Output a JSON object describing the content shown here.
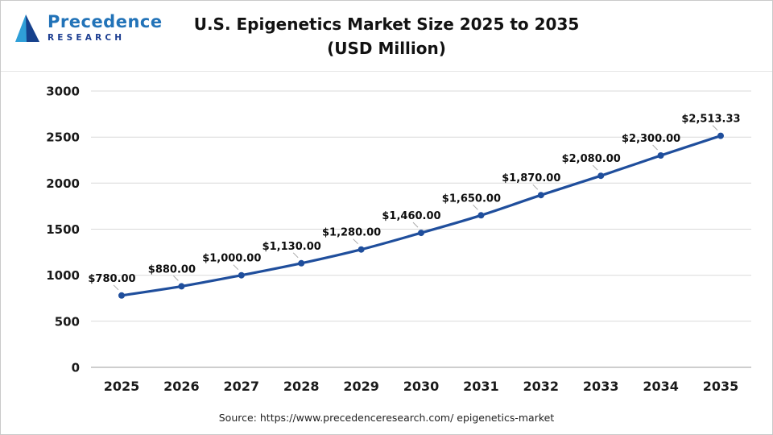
{
  "logo": {
    "line1": "Precedence",
    "line2": "RESEARCH"
  },
  "source": "Source: https://www.precedenceresearch.com/ epigenetics-market",
  "chart_data": {
    "type": "line",
    "title": "U.S. Epigenetics Market Size 2025 to 2035",
    "subtitle": "(USD Million)",
    "categories": [
      "2025",
      "2026",
      "2027",
      "2028",
      "2029",
      "2030",
      "2031",
      "2032",
      "2033",
      "2034",
      "2035"
    ],
    "values": [
      780,
      880,
      1000,
      1130,
      1280,
      1460,
      1650,
      1870,
      2080,
      2300,
      2513.33
    ],
    "value_labels": [
      "$780.00",
      "$880.00",
      "$1,000.00",
      "$1,130.00",
      "$1,280.00",
      "$1,460.00",
      "$1,650.00",
      "$1,870.00",
      "$2,080.00",
      "$2,300.00",
      "$2,513.33"
    ],
    "yticks": [
      0,
      500,
      1000,
      1500,
      2000,
      2500,
      3000
    ],
    "ylim": [
      0,
      3000
    ],
    "xlabel": "",
    "ylabel": "",
    "grid": true,
    "legend": false,
    "line_color": "#1F4E9C",
    "marker_color": "#1F4E9C",
    "grid_color": "#D9D9D9",
    "axis_color": "#BDBDBD",
    "leader_color": "#A8A8A8"
  }
}
